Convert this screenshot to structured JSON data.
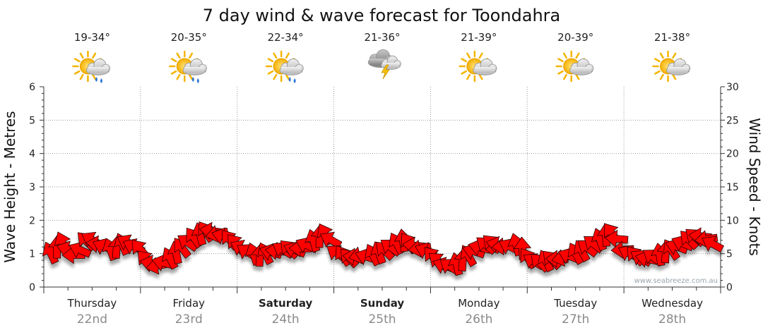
{
  "chart_data": {
    "type": "line",
    "title": "7 day wind & wave forecast for Toondahra",
    "ylabel_left": "Wave Height - Metres",
    "ylabel_right": "Wind Speed - Knots",
    "ylim_left": [
      0,
      6
    ],
    "ylim_right": [
      0,
      30
    ],
    "yticks_left": [
      "0",
      "1",
      "2",
      "3",
      "4",
      "5",
      "6"
    ],
    "yticks_right": [
      "0",
      "5",
      "10",
      "15",
      "20",
      "25",
      "30"
    ],
    "days": [
      {
        "name": "Thursday",
        "date": "22nd",
        "temp": "19-34°",
        "weather": "partly-cloudy-showers",
        "bold": false
      },
      {
        "name": "Friday",
        "date": "23rd",
        "temp": "20-35°",
        "weather": "partly-cloudy-showers",
        "bold": false
      },
      {
        "name": "Saturday",
        "date": "24th",
        "temp": "22-34°",
        "weather": "partly-cloudy-showers",
        "bold": true
      },
      {
        "name": "Sunday",
        "date": "25th",
        "temp": "21-36°",
        "weather": "thunderstorm",
        "bold": true
      },
      {
        "name": "Monday",
        "date": "26th",
        "temp": "21-39°",
        "weather": "partly-cloudy",
        "bold": false
      },
      {
        "name": "Tuesday",
        "date": "27th",
        "temp": "20-39°",
        "weather": "partly-cloudy",
        "bold": false
      },
      {
        "name": "Wednesday",
        "date": "28th",
        "temp": "21-38°",
        "weather": "partly-cloudy",
        "bold": false
      }
    ],
    "series": [
      {
        "name": "Wind Speed (knots)",
        "color": "#ff0000",
        "arrow_count": 112,
        "day_values": [
          [
            5.0,
            5.8,
            6.5,
            5.6,
            4.8,
            5.5,
            6.8,
            7.0,
            6.4,
            6.0,
            5.5,
            5.8,
            6.3,
            6.6,
            6.0,
            5.6
          ],
          [
            4.0,
            3.5,
            3.2,
            3.6,
            4.2,
            5.0,
            5.8,
            6.6,
            7.3,
            7.8,
            8.2,
            8.4,
            8.0,
            7.6,
            7.0,
            6.4
          ],
          [
            5.8,
            5.2,
            4.8,
            4.6,
            4.9,
            5.2,
            5.4,
            5.5,
            5.6,
            5.5,
            5.8,
            6.2,
            6.8,
            7.4,
            7.8,
            7.0
          ],
          [
            5.0,
            4.6,
            4.3,
            4.5,
            4.8,
            4.5,
            4.7,
            5.0,
            5.4,
            5.9,
            6.4,
            6.8,
            6.5,
            6.2,
            5.8,
            5.4
          ],
          [
            4.5,
            3.8,
            3.2,
            3.0,
            3.3,
            3.9,
            4.6,
            5.3,
            5.9,
            6.2,
            6.4,
            6.3,
            6.1,
            6.0,
            6.2,
            5.6
          ],
          [
            4.2,
            3.8,
            3.6,
            3.8,
            4.0,
            4.2,
            4.4,
            4.6,
            4.9,
            5.3,
            5.8,
            6.4,
            7.0,
            7.6,
            8.0,
            7.2
          ],
          [
            5.6,
            5.0,
            4.6,
            4.3,
            4.2,
            4.4,
            4.7,
            5.1,
            5.5,
            6.0,
            6.5,
            7.0,
            7.4,
            7.6,
            7.2,
            6.4
          ]
        ]
      }
    ],
    "watermark": "www.seabreeze.com.au"
  }
}
